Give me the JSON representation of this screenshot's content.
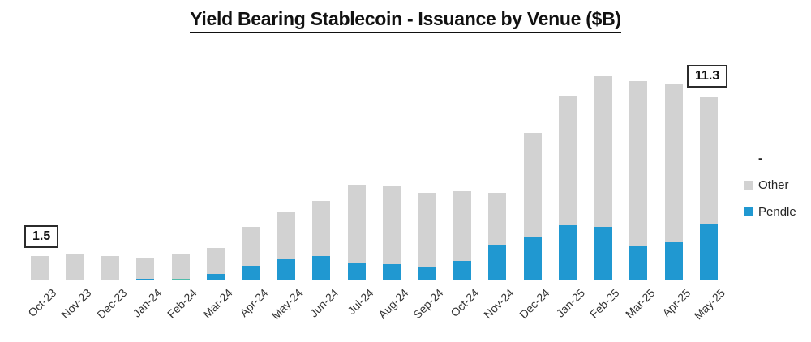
{
  "header": {
    "title": "Yield Bearing Stablecoin - Issuance by Venue ($B)"
  },
  "legend": {
    "items": [
      {
        "label": "-",
        "color": null
      },
      {
        "label": "Other",
        "color": "#D2D2D2"
      },
      {
        "label": "Pendle",
        "color": "#2098D1"
      }
    ]
  },
  "chart_data": {
    "type": "bar",
    "stacked": true,
    "title": "Yield Bearing Stablecoin - Issuance by Venue ($B)",
    "unit": "$B",
    "categories": [
      "Oct-23",
      "Nov-23",
      "Dec-23",
      "Jan-24",
      "Feb-24",
      "Mar-24",
      "Apr-24",
      "May-24",
      "Jun-24",
      "Jul-24",
      "Aug-24",
      "Sep-24",
      "Oct-24",
      "Nov-24",
      "Dec-24",
      "Jan-25",
      "Feb-25",
      "Mar-25",
      "Apr-25",
      "May-25"
    ],
    "series": [
      {
        "name": "Pendle",
        "color": "#2098D1",
        "values": [
          0,
          0,
          0,
          0.1,
          0,
          0.4,
          0.9,
          1.3,
          1.5,
          1.1,
          1.0,
          0.8,
          1.2,
          2.2,
          2.7,
          3.4,
          3.3,
          2.1,
          2.4,
          3.5
        ]
      },
      {
        "name": "-",
        "color": "#4FBCAB",
        "values": [
          0,
          0,
          0,
          0,
          0.1,
          0,
          0,
          0,
          0,
          0,
          0,
          0,
          0,
          0,
          0,
          0,
          0,
          0,
          0,
          0
        ]
      },
      {
        "name": "Other",
        "color": "#D2D2D2",
        "values": [
          1.5,
          1.6,
          1.5,
          1.3,
          1.5,
          1.6,
          2.4,
          2.9,
          3.4,
          4.8,
          4.8,
          4.6,
          4.3,
          3.2,
          6.4,
          8.0,
          9.3,
          10.2,
          9.7,
          7.8
        ]
      }
    ],
    "totals": [
      1.5,
      1.6,
      1.5,
      1.4,
      1.6,
      2.0,
      3.3,
      4.2,
      4.9,
      5.9,
      5.8,
      5.4,
      5.5,
      5.4,
      9.1,
      11.4,
      12.6,
      12.3,
      12.1,
      11.3
    ],
    "annotations": [
      {
        "text": "1.5",
        "category": "Oct-23"
      },
      {
        "text": "11.3",
        "category": "May-25"
      }
    ],
    "ylim": [
      0,
      13
    ],
    "grid": false,
    "y_axis_visible": false,
    "legend_position": "right"
  }
}
